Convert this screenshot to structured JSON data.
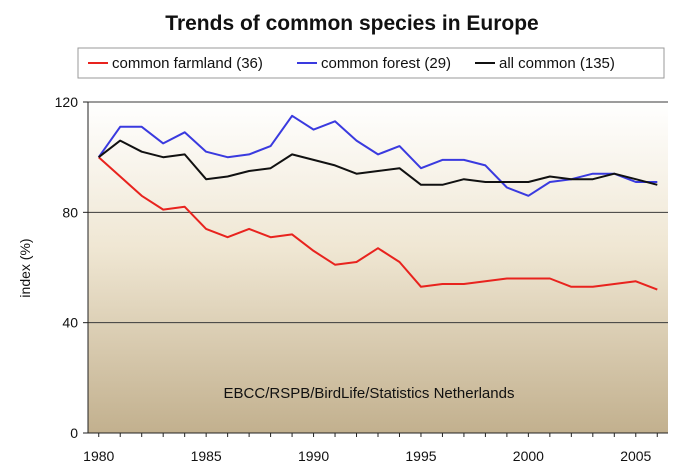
{
  "chart_data": {
    "type": "line",
    "title": "Trends of common species in Europe",
    "xlabel": "",
    "ylabel": "index (%)",
    "xlim": [
      1979.5,
      2006.5
    ],
    "ylim": [
      0,
      120
    ],
    "x_ticks": [
      1980,
      1985,
      1990,
      1995,
      2000,
      2005
    ],
    "y_ticks": [
      0,
      40,
      80,
      120
    ],
    "grid": "horizontal",
    "legend_position": "top",
    "annotation": "EBCC/RSPB/BirdLife/Statistics Netherlands",
    "x": [
      1980,
      1981,
      1982,
      1983,
      1984,
      1985,
      1986,
      1987,
      1988,
      1989,
      1990,
      1991,
      1992,
      1993,
      1994,
      1995,
      1996,
      1997,
      1998,
      1999,
      2000,
      2001,
      2002,
      2003,
      2004,
      2005,
      2006
    ],
    "series": [
      {
        "name": "common farmland (36)",
        "color": "#e8231e",
        "values": [
          100,
          93,
          86,
          81,
          82,
          74,
          71,
          74,
          71,
          72,
          66,
          61,
          62,
          67,
          62,
          53,
          54,
          54,
          55,
          56,
          56,
          56,
          53,
          53,
          54,
          55,
          52
        ]
      },
      {
        "name": "common forest (29)",
        "color": "#3a3adf",
        "values": [
          100,
          111,
          111,
          105,
          109,
          102,
          100,
          101,
          104,
          115,
          110,
          113,
          106,
          101,
          104,
          96,
          99,
          99,
          97,
          89,
          86,
          91,
          92,
          94,
          94,
          91,
          91
        ]
      },
      {
        "name": "all common (135)",
        "color": "#111111",
        "values": [
          100,
          106,
          102,
          100,
          101,
          92,
          93,
          95,
          96,
          101,
          99,
          97,
          94,
          95,
          96,
          90,
          90,
          92,
          91,
          91,
          91,
          93,
          92,
          92,
          94,
          92,
          90
        ]
      }
    ]
  }
}
